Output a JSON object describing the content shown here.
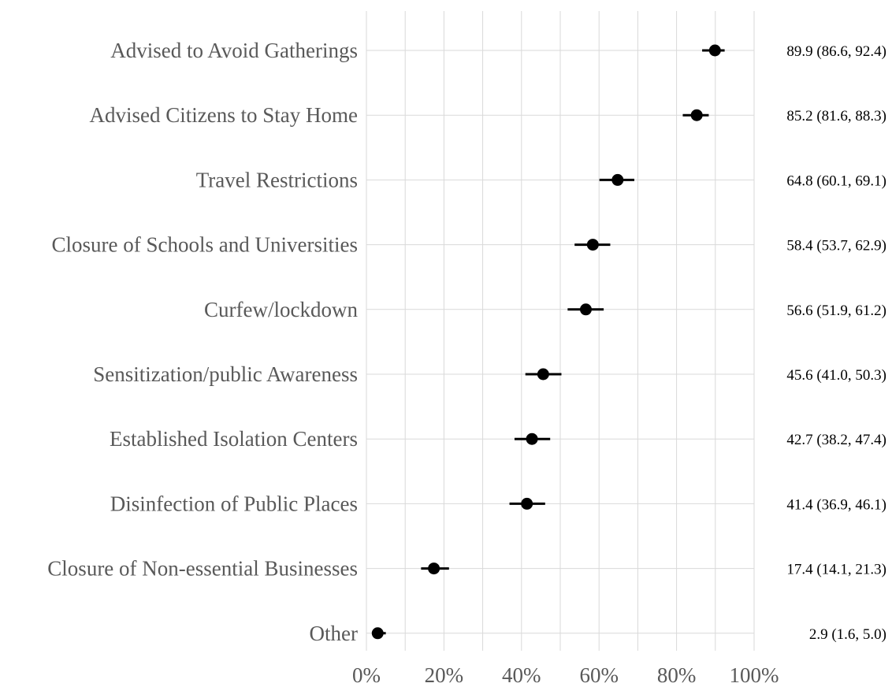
{
  "chart_data": {
    "type": "scatter",
    "title": "",
    "xlabel": "",
    "ylabel": "",
    "xlim": [
      0,
      100
    ],
    "x_ticks": [
      "0%",
      "20%",
      "40%",
      "60%",
      "80%",
      "100%"
    ],
    "x_tick_values": [
      0,
      20,
      40,
      60,
      80,
      100
    ],
    "grid": true,
    "point_color": "#000000",
    "categories": [
      "Advised to Avoid Gatherings",
      "Advised Citizens to Stay Home",
      "Travel Restrictions",
      "Closure of Schools and Universities",
      "Curfew/lockdown",
      "Sensitization/public Awareness",
      "Established Isolation Centers",
      "Disinfection of Public Places",
      "Closure of Non-essential Businesses",
      "Other"
    ],
    "values": [
      89.9,
      85.2,
      64.8,
      58.4,
      56.6,
      45.6,
      42.7,
      41.4,
      17.4,
      2.9
    ],
    "ci_low": [
      86.6,
      81.6,
      60.1,
      53.7,
      51.9,
      41.0,
      38.2,
      36.9,
      14.1,
      1.6
    ],
    "ci_high": [
      92.4,
      88.3,
      69.1,
      62.9,
      61.2,
      50.3,
      47.4,
      46.1,
      21.3,
      5.0
    ],
    "annotations": [
      "89.9 (86.6, 92.4)",
      "85.2 (81.6, 88.3)",
      "64.8 (60.1, 69.1)",
      "58.4 (53.7, 62.9)",
      "56.6 (51.9, 61.2)",
      "45.6 (41.0, 50.3)",
      "42.7 (38.2, 47.4)",
      "41.4 (36.9, 46.1)",
      "17.4 (14.1, 21.3)",
      "2.9 (1.6, 5.0)"
    ]
  }
}
